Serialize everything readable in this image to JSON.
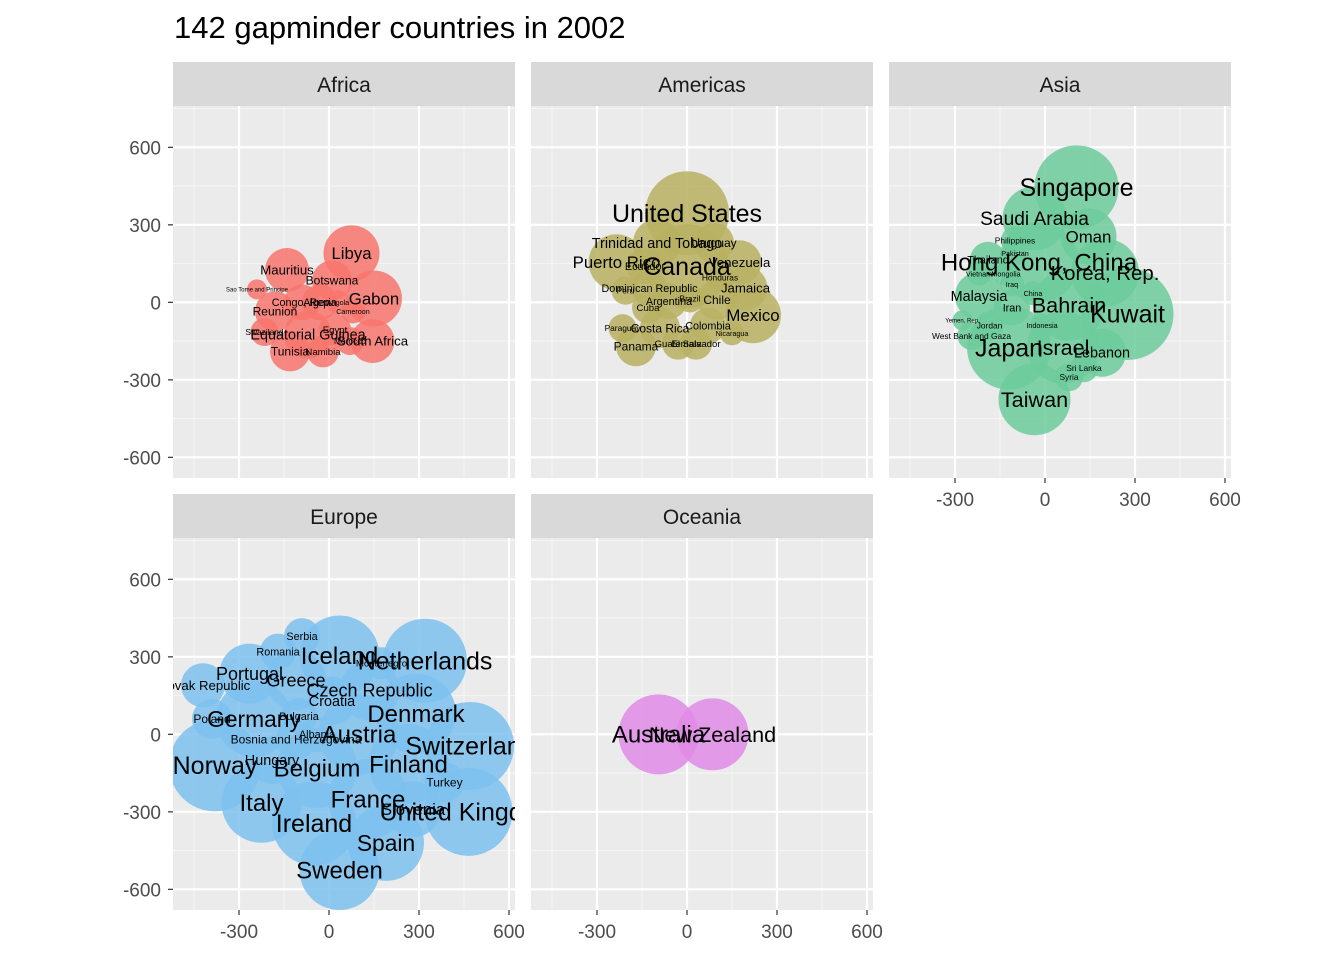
{
  "chart_data": {
    "type": "scatter",
    "title": "142 gapminder countries in 2002",
    "xlabel": "",
    "ylabel": "",
    "xlim": [
      -520,
      620
    ],
    "ylim": [
      -680,
      760
    ],
    "x_ticks": [
      -300,
      0,
      300,
      600
    ],
    "y_ticks": [
      600,
      300,
      0,
      -300,
      -600
    ],
    "grid": true,
    "legend": "none",
    "panels": [
      {
        "name": "Africa",
        "color": "#F8766D",
        "points": [
          {
            "label": "Libya",
            "x": 75,
            "y": 190,
            "r": 28
          },
          {
            "label": "Mauritius",
            "x": -140,
            "y": 125,
            "r": 22
          },
          {
            "label": "Botswana",
            "x": 10,
            "y": 85,
            "r": 20
          },
          {
            "label": "Gabon",
            "x": 150,
            "y": 15,
            "r": 28
          },
          {
            "label": "Reunion",
            "x": -180,
            "y": -35,
            "r": 20
          },
          {
            "label": "Congo, Rep.",
            "x": -90,
            "y": 0,
            "r": 18
          },
          {
            "label": "Algeria",
            "x": -30,
            "y": 0,
            "r": 18
          },
          {
            "label": "Angola",
            "x": 30,
            "y": 0,
            "r": 12
          },
          {
            "label": "Egypt",
            "x": 20,
            "y": -105,
            "r": 16
          },
          {
            "label": "Equatorial Guinea",
            "x": -70,
            "y": -125,
            "r": 24
          },
          {
            "label": "South Africa",
            "x": 145,
            "y": -150,
            "r": 22
          },
          {
            "label": "Tunisia",
            "x": -130,
            "y": -190,
            "r": 20
          },
          {
            "label": "Namibia",
            "x": -20,
            "y": -190,
            "r": 16
          },
          {
            "label": "Swaziland",
            "x": -215,
            "y": -115,
            "r": 14
          },
          {
            "label": "Sao Tome and Principe",
            "x": -240,
            "y": 50,
            "r": 10
          },
          {
            "label": "Cameroon",
            "x": 80,
            "y": -35,
            "r": 12
          },
          {
            "label": "Morocco",
            "x": 70,
            "y": -150,
            "r": 14
          }
        ]
      },
      {
        "name": "Americas",
        "color": "#B8B062",
        "points": [
          {
            "label": "United States",
            "x": 0,
            "y": 345,
            "r": 42
          },
          {
            "label": "Canada",
            "x": 0,
            "y": 140,
            "r": 42
          },
          {
            "label": "Puerto Rico",
            "x": -235,
            "y": 155,
            "r": 28
          },
          {
            "label": "Trinidad and Tobago",
            "x": -100,
            "y": 230,
            "r": 24
          },
          {
            "label": "Uruguay",
            "x": 90,
            "y": 230,
            "r": 20
          },
          {
            "label": "Venezuela",
            "x": 175,
            "y": 155,
            "r": 22
          },
          {
            "label": "Ecuador",
            "x": -140,
            "y": 140,
            "r": 18
          },
          {
            "label": "Honduras",
            "x": 110,
            "y": 95,
            "r": 14
          },
          {
            "label": "Jamaica",
            "x": 195,
            "y": 55,
            "r": 22
          },
          {
            "label": "Dominican Republic",
            "x": -125,
            "y": 55,
            "r": 18
          },
          {
            "label": "Peru",
            "x": -205,
            "y": 45,
            "r": 14
          },
          {
            "label": "Argentina",
            "x": -60,
            "y": 5,
            "r": 18
          },
          {
            "label": "Chile",
            "x": 100,
            "y": 10,
            "r": 20
          },
          {
            "label": "Brazil",
            "x": 10,
            "y": 15,
            "r": 14
          },
          {
            "label": "Cuba",
            "x": -130,
            "y": -20,
            "r": 16
          },
          {
            "label": "Mexico",
            "x": 220,
            "y": -50,
            "r": 28
          },
          {
            "label": "Colombia",
            "x": 70,
            "y": -90,
            "r": 18
          },
          {
            "label": "Costa Rica",
            "x": -90,
            "y": -100,
            "r": 20
          },
          {
            "label": "Paraguay",
            "x": -215,
            "y": -100,
            "r": 14
          },
          {
            "label": "Nicaragua",
            "x": 150,
            "y": -120,
            "r": 12
          },
          {
            "label": "Panama",
            "x": -170,
            "y": -170,
            "r": 20
          },
          {
            "label": "Guatemala",
            "x": -30,
            "y": -160,
            "r": 16
          },
          {
            "label": "El Salvador",
            "x": 30,
            "y": -160,
            "r": 16
          }
        ]
      },
      {
        "name": "Asia",
        "color": "#6CCB9B",
        "points": [
          {
            "label": "Singapore",
            "x": 105,
            "y": 445,
            "r": 42
          },
          {
            "label": "Saudi Arabia",
            "x": -35,
            "y": 325,
            "r": 32
          },
          {
            "label": "Oman",
            "x": 145,
            "y": 255,
            "r": 28
          },
          {
            "label": "Philippines",
            "x": -100,
            "y": 240,
            "r": 14
          },
          {
            "label": "Pakistan",
            "x": -100,
            "y": 190,
            "r": 12
          },
          {
            "label": "Hong Kong, China",
            "x": -20,
            "y": 155,
            "r": 40
          },
          {
            "label": "Korea, Rep.",
            "x": 200,
            "y": 115,
            "r": 34
          },
          {
            "label": "Thailand",
            "x": -190,
            "y": 165,
            "r": 18
          },
          {
            "label": "Vietnam",
            "x": -220,
            "y": 110,
            "r": 12
          },
          {
            "label": "Mongolia",
            "x": -130,
            "y": 110,
            "r": 12
          },
          {
            "label": "Iraq",
            "x": -110,
            "y": 70,
            "r": 12
          },
          {
            "label": "Malaysia",
            "x": -220,
            "y": 25,
            "r": 24
          },
          {
            "label": "China",
            "x": -40,
            "y": 35,
            "r": 12
          },
          {
            "label": "Iran",
            "x": -110,
            "y": -20,
            "r": 18
          },
          {
            "label": "Bahrain",
            "x": 80,
            "y": -10,
            "r": 36
          },
          {
            "label": "Kuwait",
            "x": 275,
            "y": -45,
            "r": 46
          },
          {
            "label": "Yemen, Rep.",
            "x": -275,
            "y": -70,
            "r": 10
          },
          {
            "label": "Jordan",
            "x": -185,
            "y": -90,
            "r": 14
          },
          {
            "label": "Indonesia",
            "x": -10,
            "y": -90,
            "r": 12
          },
          {
            "label": "West Bank and Gaza",
            "x": -245,
            "y": -130,
            "r": 14
          },
          {
            "label": "Japan",
            "x": -120,
            "y": -175,
            "r": 42
          },
          {
            "label": "Israel",
            "x": 60,
            "y": -175,
            "r": 36
          },
          {
            "label": "Lebanon",
            "x": 190,
            "y": -195,
            "r": 24
          },
          {
            "label": "Sri Lanka",
            "x": 130,
            "y": -255,
            "r": 14
          },
          {
            "label": "Syria",
            "x": 80,
            "y": -290,
            "r": 14
          },
          {
            "label": "Taiwan",
            "x": -35,
            "y": -375,
            "r": 36
          }
        ]
      },
      {
        "name": "Europe",
        "color": "#7CC1EE",
        "points": [
          {
            "label": "Serbia",
            "x": -90,
            "y": 380,
            "r": 18
          },
          {
            "label": "Romania",
            "x": -170,
            "y": 320,
            "r": 18
          },
          {
            "label": "Iceland",
            "x": 35,
            "y": 305,
            "r": 40
          },
          {
            "label": "Netherlands",
            "x": 320,
            "y": 285,
            "r": 42
          },
          {
            "label": "Montenegro",
            "x": 175,
            "y": 275,
            "r": 16
          },
          {
            "label": "Portugal",
            "x": -265,
            "y": 235,
            "r": 30
          },
          {
            "label": "Greece",
            "x": -110,
            "y": 210,
            "r": 30
          },
          {
            "label": "Slovak Republic",
            "x": -420,
            "y": 190,
            "r": 22
          },
          {
            "label": "Czech Republic",
            "x": 135,
            "y": 170,
            "r": 30
          },
          {
            "label": "Croatia",
            "x": 10,
            "y": 130,
            "r": 24
          },
          {
            "label": "Denmark",
            "x": 290,
            "y": 80,
            "r": 40
          },
          {
            "label": "Bulgaria",
            "x": -100,
            "y": 70,
            "r": 18
          },
          {
            "label": "Germany",
            "x": -250,
            "y": 60,
            "r": 38
          },
          {
            "label": "Poland",
            "x": -390,
            "y": 60,
            "r": 20
          },
          {
            "label": "Austria",
            "x": 100,
            "y": 0,
            "r": 40
          },
          {
            "label": "Albania",
            "x": -40,
            "y": 0,
            "r": 18
          },
          {
            "label": "Bosnia and Herzegovina",
            "x": -110,
            "y": -20,
            "r": 20
          },
          {
            "label": "Switzerland",
            "x": 470,
            "y": -45,
            "r": 44
          },
          {
            "label": "Norway",
            "x": -380,
            "y": -120,
            "r": 46
          },
          {
            "label": "Hungary",
            "x": -190,
            "y": -100,
            "r": 24
          },
          {
            "label": "Belgium",
            "x": -40,
            "y": -130,
            "r": 40
          },
          {
            "label": "Finland",
            "x": 265,
            "y": -115,
            "r": 40
          },
          {
            "label": "Turkey",
            "x": 385,
            "y": -185,
            "r": 20
          },
          {
            "label": "France",
            "x": 130,
            "y": -250,
            "r": 40
          },
          {
            "label": "Slovenia",
            "x": 280,
            "y": -290,
            "r": 28
          },
          {
            "label": "United Kingdom",
            "x": 465,
            "y": -300,
            "r": 44
          },
          {
            "label": "Italy",
            "x": -225,
            "y": -265,
            "r": 40
          },
          {
            "label": "Ireland",
            "x": -50,
            "y": -345,
            "r": 42
          },
          {
            "label": "Spain",
            "x": 190,
            "y": -420,
            "r": 38
          },
          {
            "label": "Sweden",
            "x": 35,
            "y": -525,
            "r": 40
          }
        ]
      },
      {
        "name": "Oceania",
        "color": "#E08BE8",
        "points": [
          {
            "label": "Australia",
            "x": -95,
            "y": 0,
            "r": 40
          },
          {
            "label": "New Zealand",
            "x": 85,
            "y": 0,
            "r": 36
          }
        ]
      }
    ]
  }
}
